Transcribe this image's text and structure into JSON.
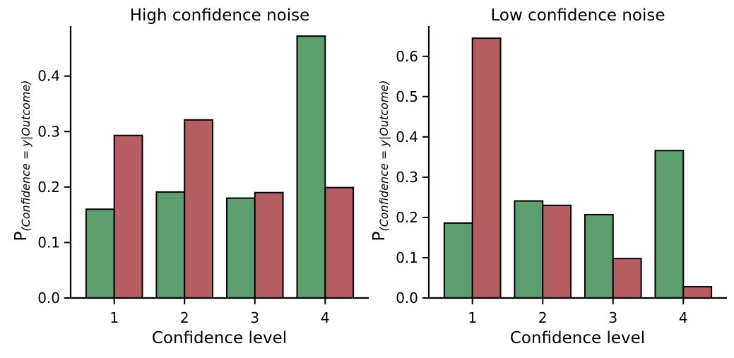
{
  "chart_data": [
    {
      "type": "bar",
      "title": "High confidence noise",
      "xlabel": "Confidence level",
      "ylabel": "P",
      "ylabel_subscript": "(Confidence = y|Outcome)",
      "categories": [
        "1",
        "2",
        "3",
        "4"
      ],
      "ylim": [
        0,
        0.49
      ],
      "yticks": [
        "0.0",
        "0.1",
        "0.2",
        "0.3",
        "0.4"
      ],
      "series": [
        {
          "values": [
            0.16,
            0.191,
            0.18,
            0.472
          ],
          "color": "#5d9e6e"
        },
        {
          "values": [
            0.293,
            0.321,
            0.19,
            0.199
          ],
          "color": "#b55d60"
        }
      ],
      "grid": false,
      "legend": "none"
    },
    {
      "type": "bar",
      "title": "Low confidence noise",
      "xlabel": "Confidence level",
      "ylabel": "P",
      "ylabel_subscript": "(Confidence = y|Outcome)",
      "categories": [
        "1",
        "2",
        "3",
        "4"
      ],
      "ylim": [
        0,
        0.675
      ],
      "yticks": [
        "0.0",
        "0.1",
        "0.2",
        "0.3",
        "0.4",
        "0.5",
        "0.6"
      ],
      "series": [
        {
          "values": [
            0.186,
            0.241,
            0.207,
            0.366
          ],
          "color": "#5d9e6e"
        },
        {
          "values": [
            0.645,
            0.23,
            0.098,
            0.028
          ],
          "color": "#b55d60"
        }
      ],
      "grid": false,
      "legend": "none"
    }
  ]
}
